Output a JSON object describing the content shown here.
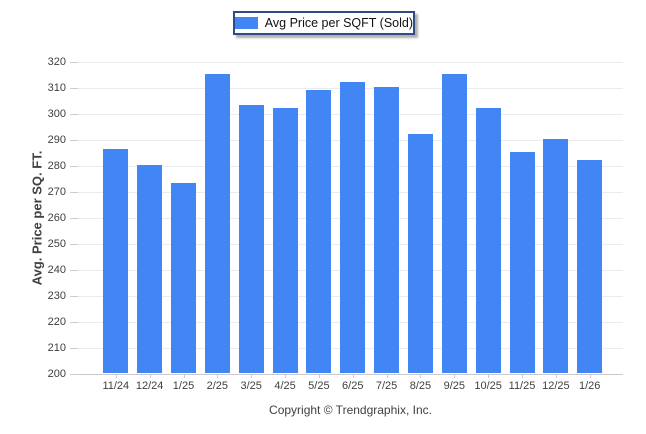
{
  "legend": {
    "label": "Avg Price per SQFT (Sold)",
    "swatch_color": "#4285f4"
  },
  "y_axis": {
    "title": "Avg. Price per SQ. FT."
  },
  "footer": {
    "copyright": "Copyright © Trendgraphix, Inc."
  },
  "colors": {
    "bar": "#4285f4",
    "grid": "#ebebeb",
    "axis_text": "#404040",
    "legend_border": "#2e4d85"
  },
  "chart_data": {
    "type": "bar",
    "title": "",
    "xlabel": "",
    "ylabel": "Avg. Price per SQ. FT.",
    "categories": [
      "11/24",
      "12/24",
      "1/25",
      "2/25",
      "3/25",
      "4/25",
      "5/25",
      "6/25",
      "7/25",
      "8/25",
      "9/25",
      "10/25",
      "11/25",
      "12/25",
      "1/26"
    ],
    "series": [
      {
        "name": "Avg Price per SQFT (Sold)",
        "color": "#4285f4",
        "values": [
          286,
          280,
          273,
          315,
          303,
          302,
          309,
          312,
          310,
          292,
          315,
          302,
          285,
          290,
          282
        ]
      }
    ],
    "ylim": [
      200,
      320
    ],
    "ytick_step": 10,
    "grid": "horizontal",
    "legend_position": "top-center"
  }
}
